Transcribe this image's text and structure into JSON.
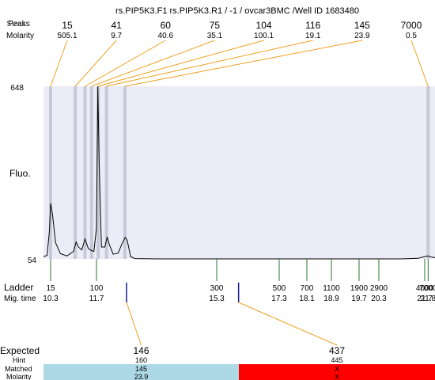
{
  "header": {
    "title": "rs.PIP5K3.F1  rs.PIP5K3.R1 / -1 / ovcar3BMC  /Well ID 1683480",
    "row_label_top": "Peaks",
    "row_label_top_overlap": "Sizes",
    "row_label_bottom": "Molarity"
  },
  "chart_data": {
    "type": "line",
    "ylabel": "Fluo.",
    "y_ticks": [
      "648",
      "54"
    ],
    "ylim": [
      54,
      648
    ],
    "peaks": [
      {
        "size": "15",
        "molarity": "505.1",
        "time": 10.3
      },
      {
        "size": "41",
        "molarity": "9.7",
        "time": 11.05
      },
      {
        "size": "60",
        "molarity": "40.6",
        "time": 11.35
      },
      {
        "size": "75",
        "molarity": "35.1",
        "time": 11.55
      },
      {
        "size": "104",
        "molarity": "100.1",
        "time": 11.75
      },
      {
        "size": "116",
        "molarity": "19.1",
        "time": 12.0
      },
      {
        "size": "145",
        "molarity": "23.9",
        "time": 12.55
      },
      {
        "size": "7000",
        "molarity": "0.5",
        "time": 21.8
      }
    ],
    "ladder_label": "Ladder",
    "migtime_label": "Mig. time",
    "ladder": [
      {
        "size": "15",
        "time": "10.3"
      },
      {
        "size": "100",
        "time": "11.7"
      },
      {
        "size": "300",
        "time": "15.3"
      },
      {
        "size": "500",
        "time": "17.3"
      },
      {
        "size": "700",
        "time": "18.1"
      },
      {
        "size": "1100",
        "time": "18.9"
      },
      {
        "size": "1900",
        "time": "19.7"
      },
      {
        "size": "2900",
        "time": "20.3"
      },
      {
        "size": "4000",
        "time": "21.7"
      },
      {
        "size": "7000",
        "time": "21.8"
      }
    ],
    "trace": [
      [
        10.0,
        62
      ],
      [
        10.15,
        66
      ],
      [
        10.25,
        150
      ],
      [
        10.3,
        245
      ],
      [
        10.36,
        205
      ],
      [
        10.45,
        110
      ],
      [
        10.6,
        72
      ],
      [
        10.8,
        64
      ],
      [
        11.0,
        80
      ],
      [
        11.08,
        112
      ],
      [
        11.15,
        95
      ],
      [
        11.25,
        85
      ],
      [
        11.35,
        122
      ],
      [
        11.45,
        90
      ],
      [
        11.55,
        82
      ],
      [
        11.62,
        80
      ],
      [
        11.7,
        160
      ],
      [
        11.74,
        648
      ],
      [
        11.78,
        380
      ],
      [
        11.85,
        95
      ],
      [
        11.95,
        95
      ],
      [
        12.02,
        130
      ],
      [
        12.08,
        105
      ],
      [
        12.2,
        70
      ],
      [
        12.35,
        74
      ],
      [
        12.48,
        110
      ],
      [
        12.56,
        128
      ],
      [
        12.62,
        118
      ],
      [
        12.72,
        62
      ],
      [
        12.85,
        55
      ],
      [
        13.5,
        54
      ],
      [
        15.0,
        54
      ],
      [
        17.0,
        54
      ],
      [
        19.0,
        54
      ],
      [
        21.0,
        54
      ],
      [
        21.5,
        56
      ],
      [
        21.7,
        62
      ],
      [
        21.8,
        64
      ],
      [
        21.9,
        60
      ],
      [
        22.0,
        58
      ]
    ],
    "xlim": [
      10.0,
      22.0
    ]
  },
  "matching": {
    "expected_label": "Expected",
    "hint_label": "Hint",
    "matched_label": "Matched",
    "molarity_label": "Molarity",
    "columns": [
      {
        "expected": "146",
        "expected_color": "#e02020",
        "hint": "160",
        "matched": "145",
        "molarity": "23.9",
        "status_color": "#add8e6",
        "time": 12.6
      },
      {
        "expected": "437",
        "expected_color": "#000000",
        "hint": "445",
        "matched": "X",
        "molarity": "X",
        "status_color": "#ff0000",
        "time": 16.0
      }
    ]
  },
  "colors": {
    "plot_bg": "#ececf8",
    "band": "#c8c8d8",
    "leader": "#f0a020",
    "trace": "#000000",
    "ladder_tick": "#2a7a2a",
    "expected_tick": "#1a1a8a"
  }
}
